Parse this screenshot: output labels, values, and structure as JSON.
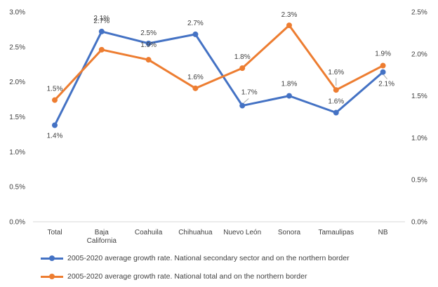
{
  "chart_data": {
    "type": "line",
    "categories": [
      "Total",
      "Baja\nCalifornia",
      "Coahuila",
      "Chihuahua",
      "Nuevo León",
      "Sonora",
      "Tamaulipas",
      "NB"
    ],
    "y_left": {
      "ticks": [
        "0.0%",
        "0.5%",
        "1.0%",
        "1.5%",
        "2.0%",
        "2.5%",
        "3.0%"
      ],
      "min": 0,
      "max": 3.0
    },
    "y_right": {
      "ticks": [
        "0.0%",
        "0.5%",
        "1.0%",
        "1.5%",
        "2.0%",
        "2.5%"
      ],
      "min": 0,
      "max": 2.5
    },
    "grid": false,
    "legend_position": "bottom-left",
    "series": [
      {
        "name": "2005-2020 average growth rate. National secondary sector and on the northern border",
        "axis": "left",
        "color": "#4472C4",
        "values": [
          1.38,
          2.72,
          2.55,
          2.68,
          1.66,
          1.8,
          1.56,
          2.14
        ],
        "labels": [
          "1.4%",
          "2.7%",
          "2.5%",
          "2.7%",
          "1.7%",
          "1.8%",
          "1.6%",
          "2.1%"
        ]
      },
      {
        "name": "2005-2020 average growth rate. National total and on the northern border",
        "axis": "right",
        "color": "#ED7D31",
        "values": [
          1.45,
          2.05,
          1.93,
          1.59,
          1.83,
          2.34,
          1.57,
          1.86
        ],
        "labels": [
          "1.5%",
          "2.1%",
          "1.9%",
          "1.6%",
          "1.8%",
          "2.3%",
          "1.6%",
          "1.9%"
        ]
      }
    ]
  }
}
